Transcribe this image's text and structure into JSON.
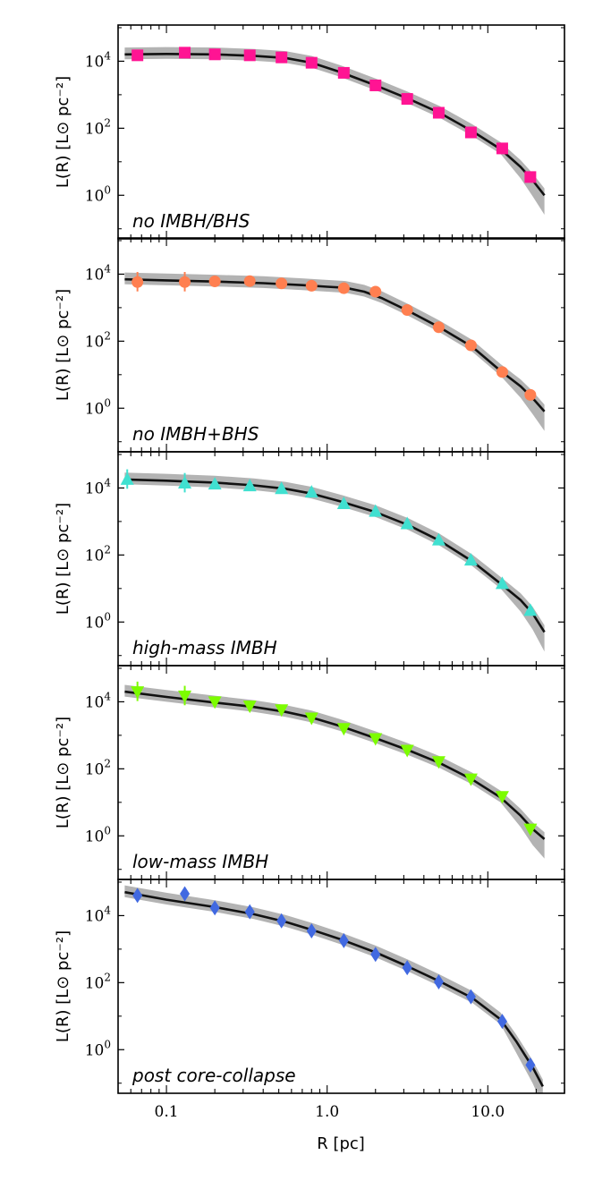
{
  "chart_data": [
    {
      "type": "scatter",
      "label": "no IMBH/BHS",
      "marker": "square",
      "color": "#ff1493",
      "xlabel": "R [pc]",
      "ylabel": "L(R) [L⊙ pc⁻²]",
      "xscale": "log",
      "yscale": "log",
      "xlim": [
        0.05,
        30
      ],
      "ylim": [
        0.05,
        120000
      ],
      "points": [
        [
          0.066,
          15000
        ],
        [
          0.13,
          18000
        ],
        [
          0.2,
          16000
        ],
        [
          0.33,
          15000
        ],
        [
          0.52,
          13000
        ],
        [
          0.8,
          9000
        ],
        [
          1.27,
          4500
        ],
        [
          2.0,
          1900
        ],
        [
          3.15,
          750
        ],
        [
          4.95,
          290
        ],
        [
          7.85,
          75
        ],
        [
          12.3,
          25
        ],
        [
          18.4,
          3.5
        ]
      ],
      "model": [
        [
          0.055,
          16000
        ],
        [
          0.1,
          16500
        ],
        [
          0.2,
          16000
        ],
        [
          0.35,
          14500
        ],
        [
          0.55,
          12500
        ],
        [
          0.8,
          9000
        ],
        [
          1.2,
          4800
        ],
        [
          2.0,
          1900
        ],
        [
          3.2,
          760
        ],
        [
          5.0,
          290
        ],
        [
          8.0,
          82
        ],
        [
          12.0,
          24
        ],
        [
          16.0,
          7
        ],
        [
          19.0,
          2.8
        ],
        [
          22.5,
          1.0
        ]
      ]
    },
    {
      "type": "scatter",
      "label": "no IMBH+BHS",
      "marker": "circle",
      "color": "#ff7f50",
      "xlabel": "R [pc]",
      "ylabel": "L(R) [L⊙ pc⁻²]",
      "xscale": "log",
      "yscale": "log",
      "xlim": [
        0.05,
        30
      ],
      "ylim": [
        0.05,
        120000
      ],
      "points": [
        [
          0.066,
          5800
        ],
        [
          0.13,
          5800
        ],
        [
          0.2,
          6100
        ],
        [
          0.33,
          6200
        ],
        [
          0.52,
          5300
        ],
        [
          0.8,
          4500
        ],
        [
          1.27,
          3800
        ],
        [
          2.0,
          3000
        ],
        [
          3.15,
          850
        ],
        [
          4.95,
          260
        ],
        [
          7.85,
          75
        ],
        [
          12.3,
          12
        ],
        [
          18.4,
          2.5
        ]
      ],
      "model": [
        [
          0.055,
          7000
        ],
        [
          0.1,
          6500
        ],
        [
          0.2,
          6000
        ],
        [
          0.4,
          5400
        ],
        [
          0.7,
          4700
        ],
        [
          1.0,
          4200
        ],
        [
          1.3,
          3900
        ],
        [
          1.7,
          3000
        ],
        [
          2.2,
          1900
        ],
        [
          3.2,
          800
        ],
        [
          5.0,
          260
        ],
        [
          8.0,
          68
        ],
        [
          12.0,
          13
        ],
        [
          16.0,
          4.5
        ],
        [
          19.0,
          2.0
        ],
        [
          22.5,
          0.8
        ]
      ]
    },
    {
      "type": "scatter",
      "label": "high-mass IMBH",
      "marker": "triangle-up",
      "color": "#40e0d0",
      "xlabel": "R [pc]",
      "ylabel": "L(R) [L⊙ pc⁻²]",
      "xscale": "log",
      "yscale": "log",
      "xlim": [
        0.05,
        30
      ],
      "ylim": [
        0.05,
        120000
      ],
      "points": [
        [
          0.057,
          18000
        ],
        [
          0.13,
          14000
        ],
        [
          0.2,
          13000
        ],
        [
          0.33,
          11500
        ],
        [
          0.52,
          9500
        ],
        [
          0.8,
          7500
        ],
        [
          1.27,
          3400
        ],
        [
          2.0,
          2000
        ],
        [
          3.15,
          850
        ],
        [
          4.95,
          280
        ],
        [
          7.85,
          70
        ],
        [
          12.3,
          14
        ],
        [
          18.4,
          2.2
        ]
      ],
      "model": [
        [
          0.055,
          18000
        ],
        [
          0.1,
          16500
        ],
        [
          0.2,
          14500
        ],
        [
          0.35,
          12000
        ],
        [
          0.55,
          9500
        ],
        [
          0.8,
          6800
        ],
        [
          1.2,
          4000
        ],
        [
          2.0,
          1900
        ],
        [
          3.2,
          780
        ],
        [
          5.0,
          270
        ],
        [
          8.0,
          65
        ],
        [
          12.0,
          14
        ],
        [
          16.0,
          4.5
        ],
        [
          19.0,
          1.8
        ],
        [
          22.5,
          0.5
        ]
      ]
    },
    {
      "type": "scatter",
      "label": "low-mass IMBH",
      "marker": "triangle-down",
      "color": "#7cfc00",
      "xlabel": "R [pc]",
      "ylabel": "L(R) [L⊙ pc⁻²]",
      "xscale": "log",
      "yscale": "log",
      "xlim": [
        0.05,
        30
      ],
      "ylim": [
        0.05,
        120000
      ],
      "points": [
        [
          0.066,
          20000
        ],
        [
          0.13,
          15000
        ],
        [
          0.2,
          10000
        ],
        [
          0.33,
          7500
        ],
        [
          0.52,
          5800
        ],
        [
          0.8,
          3300
        ],
        [
          1.27,
          1600
        ],
        [
          2.0,
          800
        ],
        [
          3.15,
          360
        ],
        [
          4.95,
          165
        ],
        [
          7.85,
          50
        ],
        [
          12.3,
          15
        ],
        [
          18.4,
          1.6
        ]
      ],
      "model": [
        [
          0.055,
          20000
        ],
        [
          0.1,
          14000
        ],
        [
          0.2,
          9500
        ],
        [
          0.35,
          7000
        ],
        [
          0.55,
          5000
        ],
        [
          0.8,
          3400
        ],
        [
          1.2,
          1900
        ],
        [
          2.0,
          820
        ],
        [
          3.2,
          360
        ],
        [
          5.0,
          150
        ],
        [
          8.0,
          48
        ],
        [
          12.0,
          14
        ],
        [
          16.0,
          4.0
        ],
        [
          19.0,
          1.6
        ],
        [
          22.5,
          0.8
        ]
      ]
    },
    {
      "type": "scatter",
      "label": "post core-collapse",
      "marker": "diamond",
      "color": "#4169e1",
      "xlabel": "R [pc]",
      "ylabel": "L(R) [L⊙ pc⁻²]",
      "xscale": "log",
      "yscale": "log",
      "xlim": [
        0.05,
        30
      ],
      "ylim": [
        0.05,
        120000
      ],
      "points": [
        [
          0.066,
          40000
        ],
        [
          0.13,
          45000
        ],
        [
          0.2,
          17000
        ],
        [
          0.33,
          13000
        ],
        [
          0.52,
          7000
        ],
        [
          0.8,
          3500
        ],
        [
          1.27,
          1800
        ],
        [
          2.0,
          700
        ],
        [
          3.15,
          280
        ],
        [
          4.95,
          105
        ],
        [
          7.85,
          38
        ],
        [
          12.3,
          7
        ],
        [
          18.4,
          0.35
        ]
      ],
      "model": [
        [
          0.055,
          50000
        ],
        [
          0.1,
          30000
        ],
        [
          0.2,
          18000
        ],
        [
          0.35,
          11000
        ],
        [
          0.55,
          6500
        ],
        [
          0.8,
          3800
        ],
        [
          1.2,
          2000
        ],
        [
          2.0,
          800
        ],
        [
          3.2,
          300
        ],
        [
          5.0,
          110
        ],
        [
          8.0,
          35
        ],
        [
          12.0,
          8
        ],
        [
          15.0,
          1.8
        ],
        [
          19.0,
          0.3
        ],
        [
          22.0,
          0.08
        ]
      ]
    }
  ],
  "axis": {
    "y_tick_labels": [
      {
        "base": "10",
        "exp": "4"
      },
      {
        "base": "10",
        "exp": "2"
      },
      {
        "base": "10",
        "exp": "0"
      }
    ],
    "x_tick_labels": [
      "0.1",
      "1.0",
      "10.0"
    ],
    "ylabel": "L(R) [L⊙ pc⁻²]",
    "xlabel": "R [pc]"
  }
}
